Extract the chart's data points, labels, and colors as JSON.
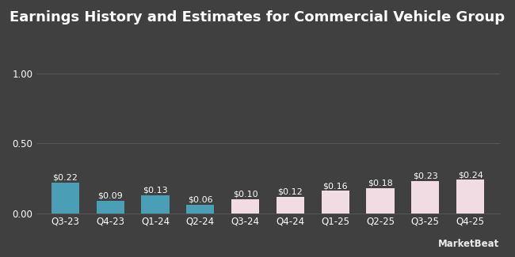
{
  "title": "Earnings History and Estimates for Commercial Vehicle Group",
  "categories": [
    "Q3-23",
    "Q4-23",
    "Q1-24",
    "Q2-24",
    "Q3-24",
    "Q4-24",
    "Q1-25",
    "Q2-25",
    "Q3-25",
    "Q4-25"
  ],
  "values": [
    0.22,
    0.09,
    0.13,
    0.06,
    0.1,
    0.12,
    0.16,
    0.18,
    0.23,
    0.24
  ],
  "labels": [
    "$0.22",
    "$0.09",
    "$0.13",
    "$0.06",
    "$0.10",
    "$0.12",
    "$0.16",
    "$0.18",
    "$0.23",
    "$0.24"
  ],
  "bar_colors": [
    "#4a9eb5",
    "#4a9eb5",
    "#4a9eb5",
    "#4a9eb5",
    "#f2dce4",
    "#f2dce4",
    "#f2dce4",
    "#f2dce4",
    "#f2dce4",
    "#f2dce4"
  ],
  "background_color": "#404040",
  "text_color": "#ffffff",
  "grid_color": "#585858",
  "yticks": [
    0.0,
    0.5,
    1.0
  ],
  "ylim": [
    0,
    1.12
  ],
  "title_fontsize": 13,
  "label_fontsize": 8,
  "tick_fontsize": 8.5,
  "watermark": "MarketBeat"
}
